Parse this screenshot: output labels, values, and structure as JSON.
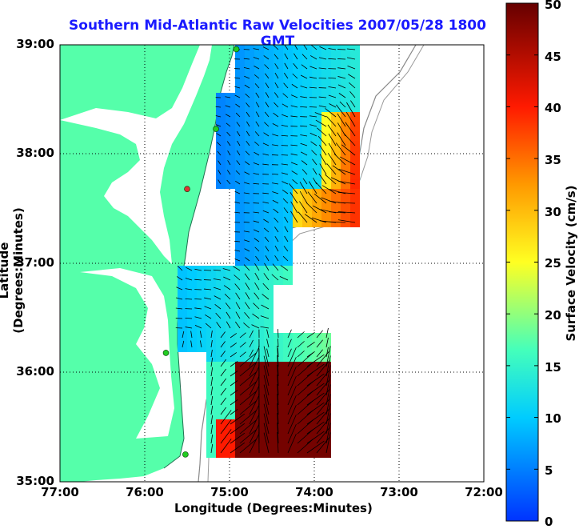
{
  "title": "Southern Mid-Atlantic Raw Velocities 2007/05/28 1800 GMT",
  "x_axis": {
    "label": "Longitude (Degrees:Minutes)",
    "ticks": [
      "77:00",
      "76:00",
      "75:00",
      "74:00",
      "73:00",
      "72:00"
    ]
  },
  "y_axis": {
    "label": "Latitude (Degrees:Minutes)",
    "ticks": [
      "39:00",
      "38:00",
      "37:00",
      "36:00",
      "35:00"
    ]
  },
  "colorbar": {
    "label": "Surface Velocity (cm/s)",
    "ticks": [
      "50",
      "45",
      "40",
      "35",
      "30",
      "25",
      "20",
      "15",
      "10",
      "5",
      "0"
    ],
    "range": [
      0,
      50
    ]
  },
  "colors": {
    "land": "#55ffaa",
    "water": "#ffffff",
    "title": "#1a1aff"
  },
  "stations": [
    {
      "lon": -74.92,
      "lat": 38.96,
      "color": "#22cc22"
    },
    {
      "lon": -75.16,
      "lat": 38.23,
      "color": "#22cc22"
    },
    {
      "lon": -75.5,
      "lat": 37.68,
      "color": "#dd3333"
    },
    {
      "lon": -75.75,
      "lat": 36.18,
      "color": "#22cc22"
    },
    {
      "lon": -75.52,
      "lat": 35.25,
      "color": "#22cc22"
    }
  ]
}
